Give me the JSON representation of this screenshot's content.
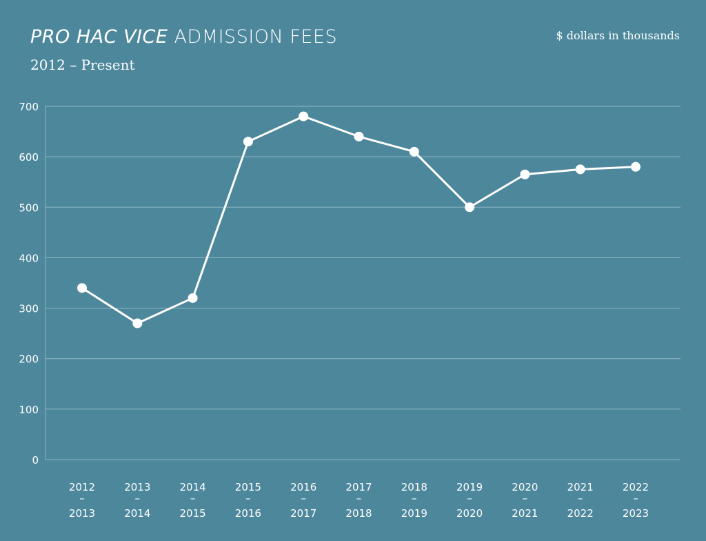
{
  "chart_data": {
    "type": "line",
    "title_italic": "PRO HAC VICE",
    "title_rest": "ADMISSION FEES",
    "subtitle": "2012 – Present",
    "unit_label": "$ dollars in thousands",
    "categories": [
      [
        "2012",
        "2013"
      ],
      [
        "2013",
        "2014"
      ],
      [
        "2014",
        "2015"
      ],
      [
        "2015",
        "2016"
      ],
      [
        "2016",
        "2017"
      ],
      [
        "2017",
        "2018"
      ],
      [
        "2018",
        "2019"
      ],
      [
        "2019",
        "2020"
      ],
      [
        "2020",
        "2021"
      ],
      [
        "2021",
        "2022"
      ],
      [
        "2022",
        "2023"
      ]
    ],
    "category_separator": "–",
    "values": [
      340,
      270,
      320,
      630,
      680,
      640,
      610,
      500,
      565,
      575,
      580
    ],
    "ylim": [
      0,
      700
    ],
    "yticks": [
      0,
      100,
      200,
      300,
      400,
      500,
      600,
      700
    ],
    "grid": true,
    "colors": {
      "background": "#4d879c",
      "line": "#ffffff",
      "grid": "#8fb5c3"
    }
  }
}
